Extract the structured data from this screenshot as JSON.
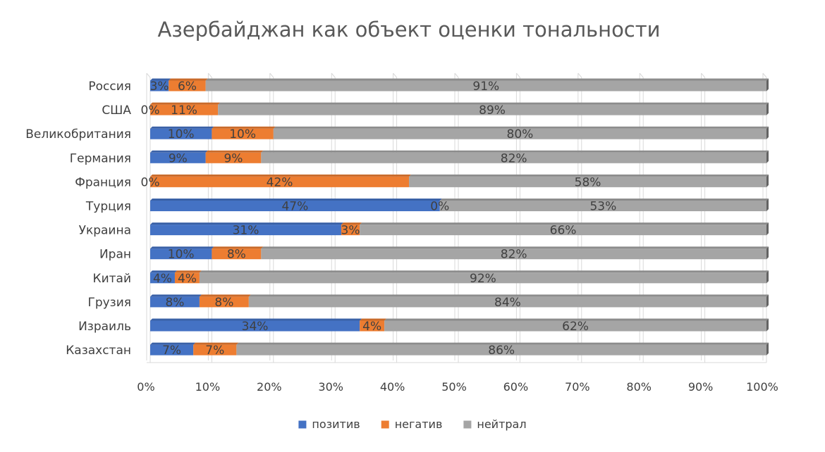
{
  "chart_data": {
    "type": "bar",
    "orientation": "horizontal",
    "stacked": true,
    "stacking": "percent",
    "title": "Азербайджан как объект оценки тональности",
    "categories": [
      "Россия",
      "США",
      "Великобритания",
      "Германия",
      "Франция",
      "Турция",
      "Украина",
      "Иран",
      "Китай",
      "Грузия",
      "Израиль",
      "Казахстан"
    ],
    "series": [
      {
        "name": "позитив",
        "color": "#4472C4",
        "values": [
          3,
          0,
          10,
          9,
          0,
          47,
          31,
          10,
          4,
          8,
          34,
          7
        ]
      },
      {
        "name": "негатив",
        "color": "#ED7D31",
        "values": [
          6,
          11,
          10,
          9,
          42,
          0,
          3,
          8,
          4,
          8,
          4,
          7
        ]
      },
      {
        "name": "нейтрал",
        "color": "#A5A5A5",
        "values": [
          91,
          89,
          80,
          82,
          58,
          53,
          66,
          82,
          92,
          84,
          62,
          86
        ]
      }
    ],
    "x_ticks": [
      "0%",
      "10%",
      "20%",
      "30%",
      "40%",
      "50%",
      "60%",
      "70%",
      "80%",
      "90%",
      "100%"
    ],
    "xlim": [
      0,
      100
    ],
    "data_label_suffix": "%",
    "grid": true,
    "legend_position": "bottom"
  }
}
